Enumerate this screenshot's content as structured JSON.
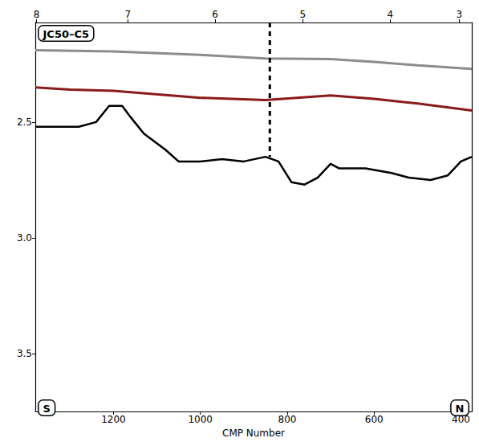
{
  "chart_data": {
    "type": "line",
    "title": "JC50–C5",
    "annotations": [
      "S",
      "N"
    ],
    "x_label": "CMP Number",
    "xlim": [
      1380,
      375
    ],
    "xticks": [
      1200,
      1000,
      800,
      600,
      400
    ],
    "x2ticks": [
      {
        "value": 1377,
        "label": "8"
      },
      {
        "value": 1167,
        "label": "7"
      },
      {
        "value": 966,
        "label": "6"
      },
      {
        "value": 764,
        "label": "5"
      },
      {
        "value": 563,
        "label": "4"
      },
      {
        "value": 404,
        "label": "3"
      }
    ],
    "ylim": [
      2.07,
      3.75
    ],
    "yticks": [
      2.5,
      {
        "value": 3,
        "label": "3.0"
      },
      3.5
    ],
    "grid": false,
    "series": [
      {
        "color": "#8c8c8c",
        "line_style": "solid",
        "x": [
          1380,
          1200,
          1000,
          850,
          700,
          600,
          500,
          375
        ],
        "values": [
          2.19,
          2.195,
          2.21,
          2.225,
          2.228,
          2.24,
          2.255,
          2.27
        ]
      },
      {
        "color": "#8b1a1a",
        "line_style": "solid",
        "x": [
          1380,
          1300,
          1200,
          1000,
          850,
          700,
          600,
          500,
          375
        ],
        "values": [
          2.35,
          2.36,
          2.365,
          2.395,
          2.405,
          2.385,
          2.4,
          2.42,
          2.45
        ]
      },
      {
        "color": "#000000",
        "line_style": "solid",
        "x": [
          1380,
          1280,
          1240,
          1210,
          1180,
          1160,
          1130,
          1080,
          1050,
          1000,
          950,
          900,
          850,
          820,
          790,
          760,
          730,
          700,
          680,
          620,
          560,
          520,
          470,
          430,
          400,
          375
        ],
        "values": [
          2.52,
          2.52,
          2.5,
          2.43,
          2.43,
          2.48,
          2.55,
          2.62,
          2.67,
          2.67,
          2.66,
          2.67,
          2.65,
          2.67,
          2.76,
          2.77,
          2.74,
          2.68,
          2.7,
          2.7,
          2.72,
          2.74,
          2.75,
          2.73,
          2.67,
          2.65
        ]
      },
      {
        "color": "#000000",
        "line_style": "dashed",
        "x": [
          840,
          840
        ],
        "values": [
          2.07,
          2.65
        ]
      }
    ]
  }
}
